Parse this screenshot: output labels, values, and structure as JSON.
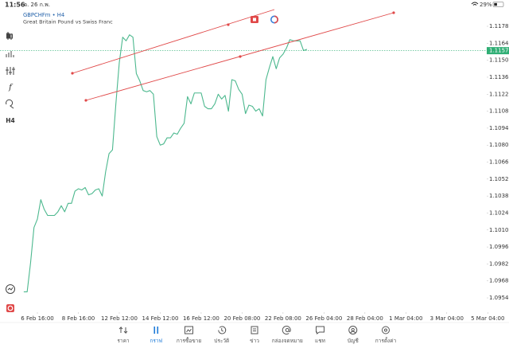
{
  "status_bar": {
    "time": "11:56",
    "date": "จ. 26 ก.พ.",
    "battery": "29%"
  },
  "toolbar": {
    "indicator": "f",
    "timeframe": "H4"
  },
  "chart_data": {
    "type": "line",
    "title": "GBPCHFm • H4",
    "subtitle": "Great Britain Pound vs Swiss Franc",
    "color": "#4cb88e",
    "values": [
      1.0959,
      1.0959,
      1.0983,
      1.1012,
      1.1019,
      1.1035,
      1.1027,
      1.1022,
      1.1022,
      1.1022,
      1.1025,
      1.103,
      1.1025,
      1.1032,
      1.1032,
      1.1042,
      1.1044,
      1.1043,
      1.1045,
      1.1039,
      1.104,
      1.1043,
      1.1044,
      1.1038,
      1.1058,
      1.1073,
      1.1076,
      1.1114,
      1.1148,
      1.1169,
      1.1166,
      1.1171,
      1.1169,
      1.1139,
      1.1133,
      1.1125,
      1.1124,
      1.1125,
      1.1122,
      1.1087,
      1.108,
      1.1081,
      1.1086,
      1.1086,
      1.109,
      1.1089,
      1.1094,
      1.1098,
      1.112,
      1.1114,
      1.1123,
      1.1123,
      1.1123,
      1.1112,
      1.111,
      1.111,
      1.1114,
      1.1122,
      1.1118,
      1.1121,
      1.1108,
      1.1134,
      1.1133,
      1.1126,
      1.1122,
      1.1106,
      1.1113,
      1.1112,
      1.1108,
      1.111,
      1.1104,
      1.1134,
      1.1144,
      1.1153,
      1.1143,
      1.1152,
      1.1155,
      1.116,
      1.1167,
      1.1166,
      1.1166,
      1.1166,
      1.1158,
      1.1159
    ],
    "current_price": 1.11579,
    "current_price_color": "#2fae74",
    "xlim": [
      -0.9,
      135.7
    ],
    "xticks": [
      {
        "value": 4,
        "label": "6 Feb 16:00"
      },
      {
        "value": 16,
        "label": "8 Feb 16:00"
      },
      {
        "value": 28,
        "label": "12 Feb 12:00"
      },
      {
        "value": 40,
        "label": "14 Feb 12:00"
      },
      {
        "value": 52,
        "label": "16 Feb 12:00"
      },
      {
        "value": 64,
        "label": "20 Feb 08:00"
      },
      {
        "value": 76,
        "label": "22 Feb 08:00"
      },
      {
        "value": 88,
        "label": "26 Feb 04:00"
      },
      {
        "value": 100,
        "label": "28 Feb 04:00"
      },
      {
        "value": 112,
        "label": "1 Mar 04:00"
      },
      {
        "value": 124,
        "label": "3 Mar 04:00"
      },
      {
        "value": 136,
        "label": "5 Mar 04:00"
      }
    ],
    "ylim": [
      1.09422,
      1.11918
    ],
    "yticks": [
      {
        "value": 1.1178,
        "label": "1.11780"
      },
      {
        "value": 1.1164,
        "label": "1.11640"
      },
      {
        "value": 1.115,
        "label": "1.11500"
      },
      {
        "value": 1.1136,
        "label": "1.11360"
      },
      {
        "value": 1.1122,
        "label": "1.11220"
      },
      {
        "value": 1.1108,
        "label": "1.11080"
      },
      {
        "value": 1.1094,
        "label": "1.10940"
      },
      {
        "value": 1.108,
        "label": "1.10800"
      },
      {
        "value": 1.1066,
        "label": "1.10660"
      },
      {
        "value": 1.1052,
        "label": "1.10520"
      },
      {
        "value": 1.1038,
        "label": "1.10380"
      },
      {
        "value": 1.1024,
        "label": "1.10240"
      },
      {
        "value": 1.101,
        "label": "1.10100"
      },
      {
        "value": 1.0996,
        "label": "1.09960"
      },
      {
        "value": 1.0982,
        "label": "1.09820"
      },
      {
        "value": 1.0968,
        "label": "1.09680"
      },
      {
        "value": 1.0954,
        "label": "1.09540"
      }
    ]
  },
  "navigation": {
    "items": [
      "ราคา",
      "กราฟ",
      "การซื้อขาย",
      "ประวัติ",
      "ข่าว",
      "กล่องจดหมาย",
      "แชท",
      "บัญชี",
      "การตั้งค่า"
    ],
    "active": 1
  }
}
